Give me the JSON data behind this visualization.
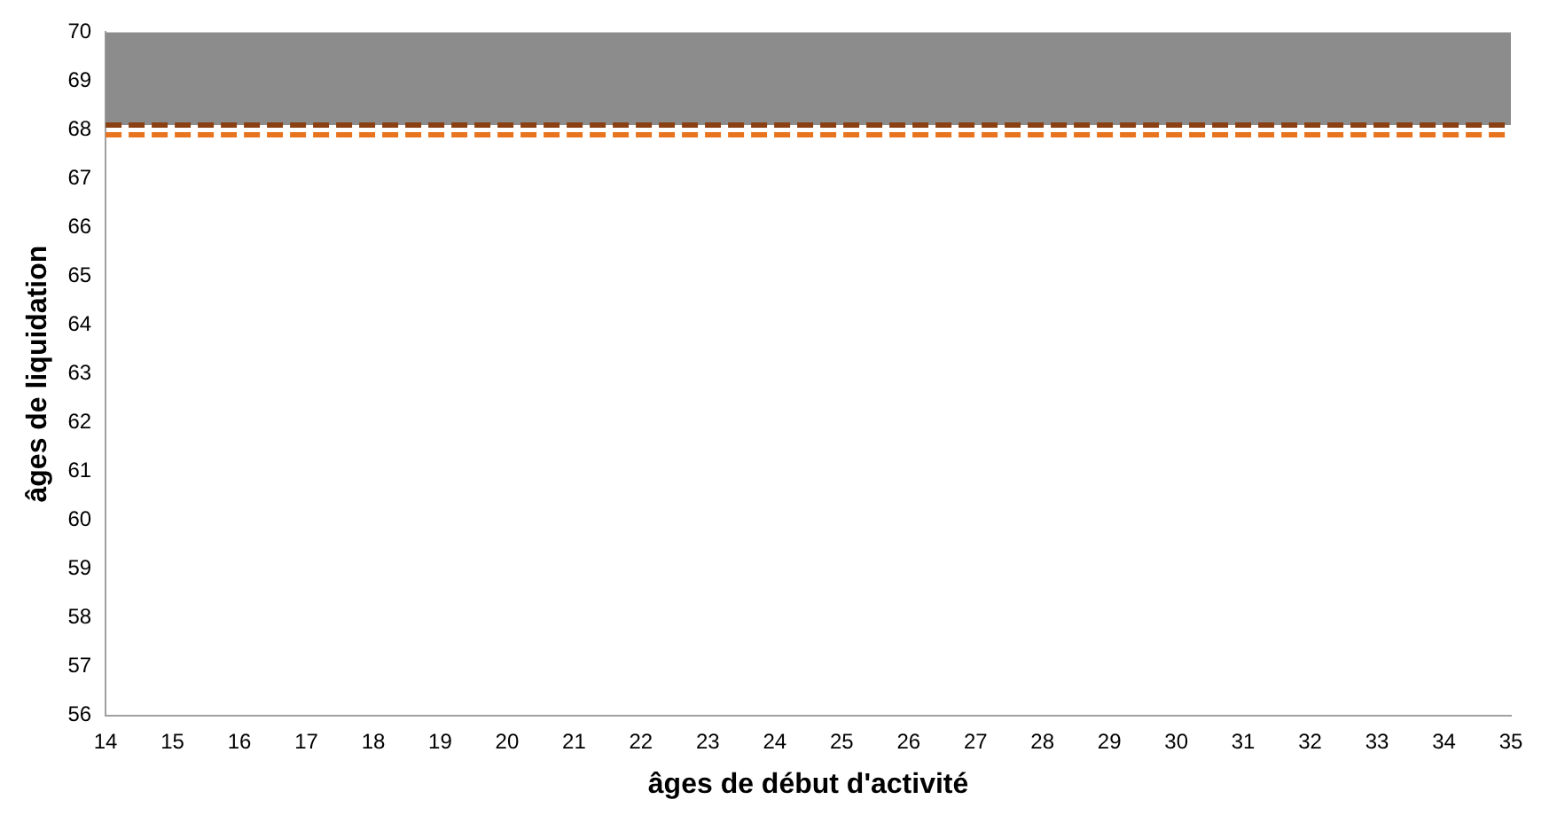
{
  "chart_data": {
    "type": "line",
    "xlabel": "âges de début d'activité",
    "ylabel": "âges de liquidation",
    "x": [
      14,
      35
    ],
    "series": [
      {
        "color": "#8a4012",
        "line_style": "dashed",
        "values": [
          68.1,
          68.1
        ]
      },
      {
        "color": "#e8741f",
        "line_style": "dashed",
        "values": [
          67.9,
          67.9
        ]
      }
    ],
    "bands": [
      {
        "axis": "y",
        "from": 68.1,
        "to": 70,
        "color": "#8c8c8c"
      }
    ],
    "xlim": [
      14,
      35
    ],
    "xticks": [
      14,
      15,
      16,
      17,
      18,
      19,
      20,
      21,
      22,
      23,
      24,
      25,
      26,
      27,
      28,
      29,
      30,
      31,
      32,
      33,
      34,
      35
    ],
    "ylim": [
      56,
      70
    ],
    "yticks": [
      56,
      57,
      58,
      59,
      60,
      61,
      62,
      63,
      64,
      65,
      66,
      67,
      68,
      69,
      70
    ],
    "grid": false,
    "legend": false,
    "marker": "none"
  }
}
